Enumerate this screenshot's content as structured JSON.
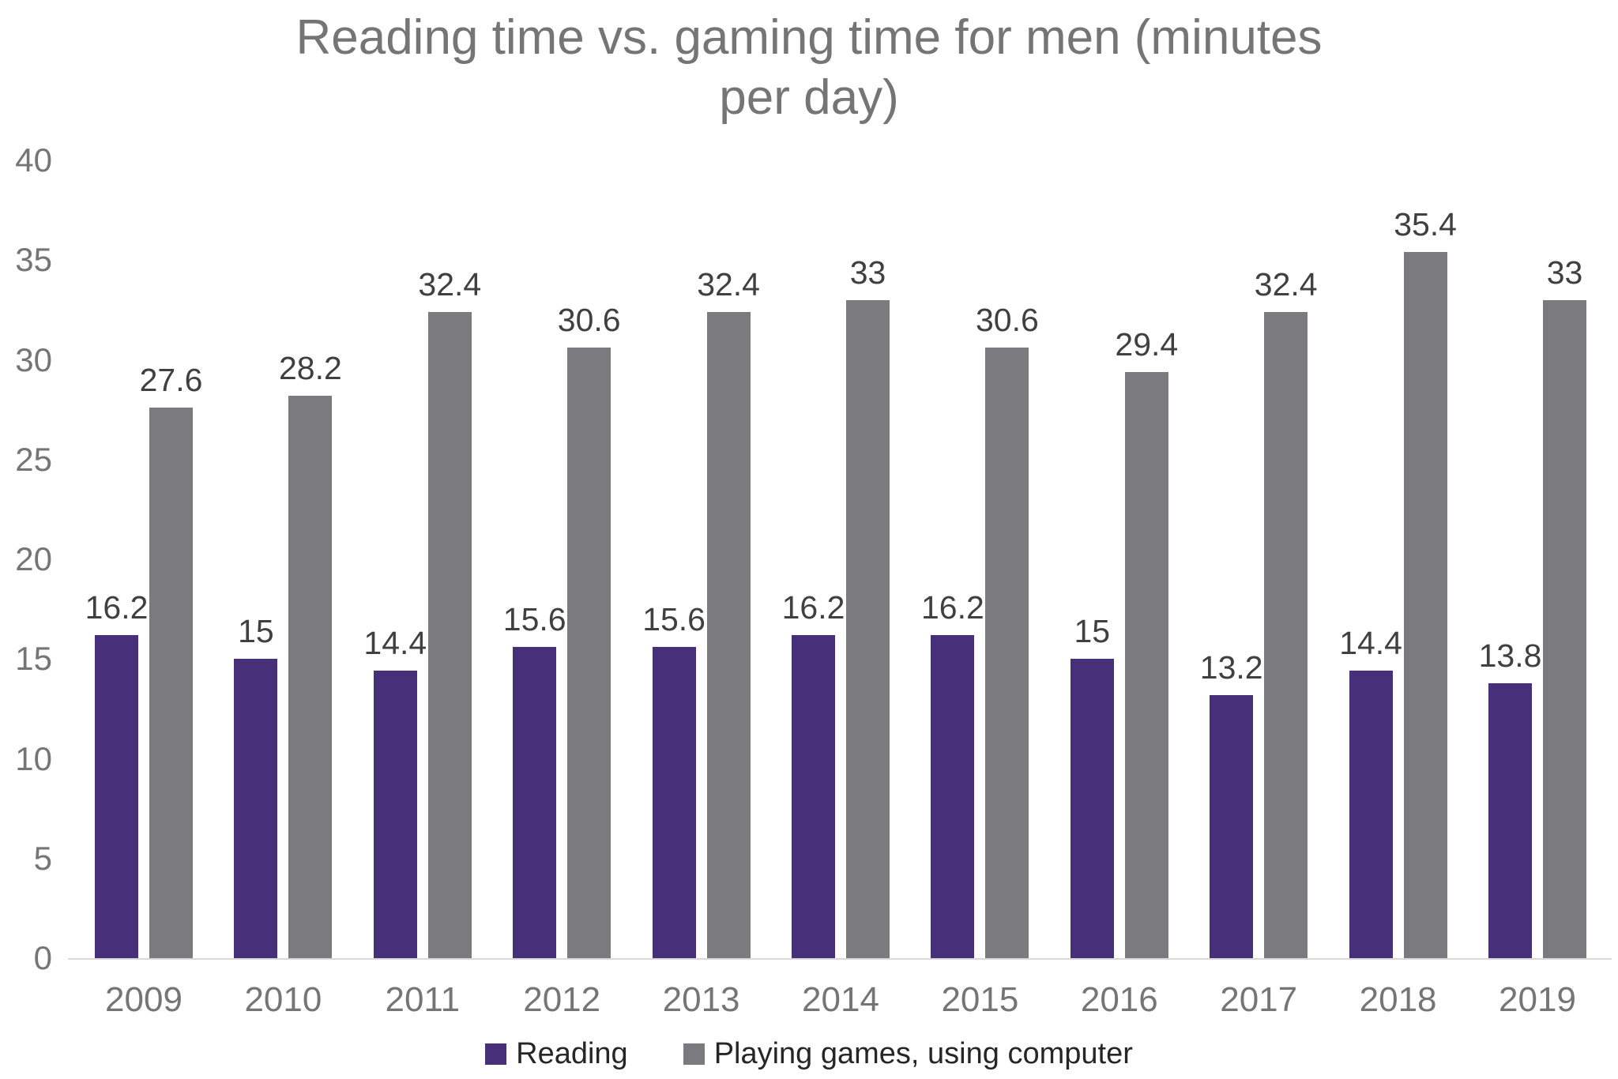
{
  "chart_data": {
    "type": "bar",
    "title": "Reading time vs. gaming time for men (minutes per day)",
    "title_lines": [
      "Reading time vs. gaming time for men (minutes",
      "per day)"
    ],
    "categories": [
      "2009",
      "2010",
      "2011",
      "2012",
      "2013",
      "2014",
      "2015",
      "2016",
      "2017",
      "2018",
      "2019"
    ],
    "series": [
      {
        "name": "Reading",
        "color": "#472f7a",
        "values": [
          16.2,
          15,
          14.4,
          15.6,
          15.6,
          16.2,
          16.2,
          15,
          13.2,
          14.4,
          13.8
        ]
      },
      {
        "name": "Playing games, using computer",
        "color": "#7b7b7f",
        "values": [
          27.6,
          28.2,
          32.4,
          30.6,
          32.4,
          33,
          30.6,
          29.4,
          32.4,
          35.4,
          33
        ]
      }
    ],
    "xlabel": "",
    "ylabel": "",
    "ylim": [
      0,
      40
    ],
    "yticks": [
      0,
      5,
      10,
      15,
      20,
      25,
      30,
      35,
      40
    ],
    "grid": false,
    "legend_position": "bottom",
    "data_labels": true,
    "colors": {
      "title_text": "#757575",
      "axis_tick_text": "#757575",
      "data_label_text": "#404040",
      "legend_text": "#262626",
      "axis_line": "#d9d9d9",
      "background": "#ffffff"
    }
  }
}
